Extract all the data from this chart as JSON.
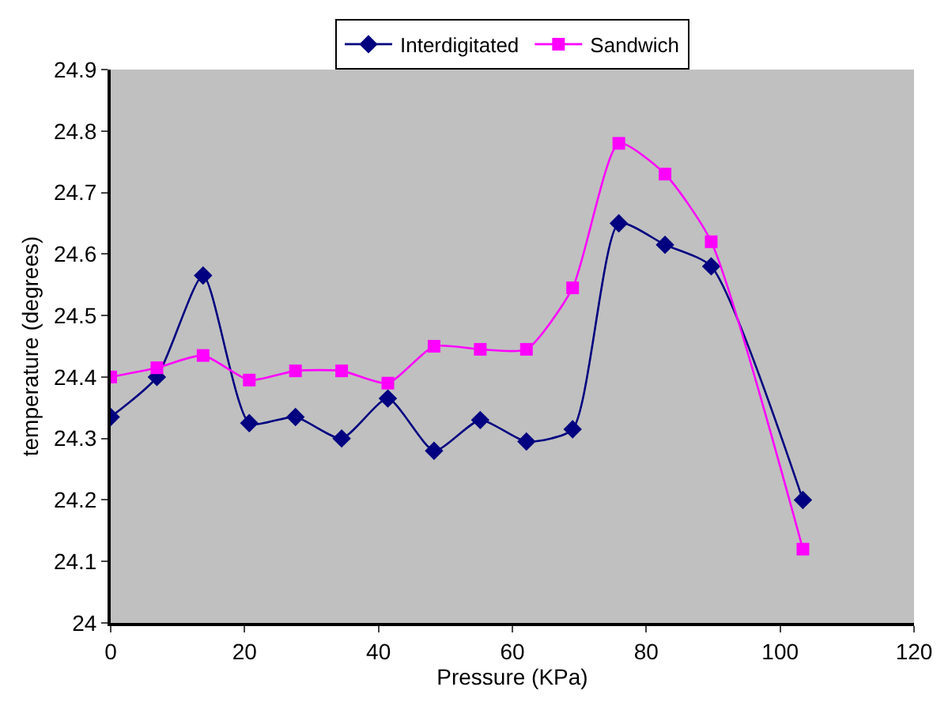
{
  "chart_data": {
    "type": "line",
    "xlabel": "Pressure (KPa)",
    "ylabel": "temperature (degrees)",
    "x": [
      0,
      6.9,
      13.8,
      20.7,
      27.6,
      34.5,
      41.4,
      48.3,
      55.2,
      62.1,
      69,
      75.9,
      82.8,
      89.7,
      103.4
    ],
    "series": [
      {
        "name": "Interdigitated",
        "color": "#000080",
        "marker": "diamond",
        "values": [
          24.335,
          24.4,
          24.565,
          24.325,
          24.335,
          24.3,
          24.365,
          24.28,
          24.33,
          24.295,
          24.315,
          24.65,
          24.615,
          24.58,
          24.2
        ]
      },
      {
        "name": "Sandwich",
        "color": "#ff00ff",
        "marker": "square",
        "values": [
          24.4,
          24.415,
          24.435,
          24.395,
          24.41,
          24.41,
          24.39,
          24.45,
          24.445,
          24.445,
          24.545,
          24.78,
          24.73,
          24.62,
          24.12
        ]
      }
    ],
    "xlim": [
      0,
      120
    ],
    "xticks": [
      0,
      20,
      40,
      60,
      80,
      100,
      120
    ],
    "ylim": [
      24,
      24.9
    ],
    "yticks": [
      24,
      24.1,
      24.2,
      24.3,
      24.4,
      24.5,
      24.6,
      24.7,
      24.8,
      24.9
    ],
    "grid": false,
    "legend": "top"
  }
}
